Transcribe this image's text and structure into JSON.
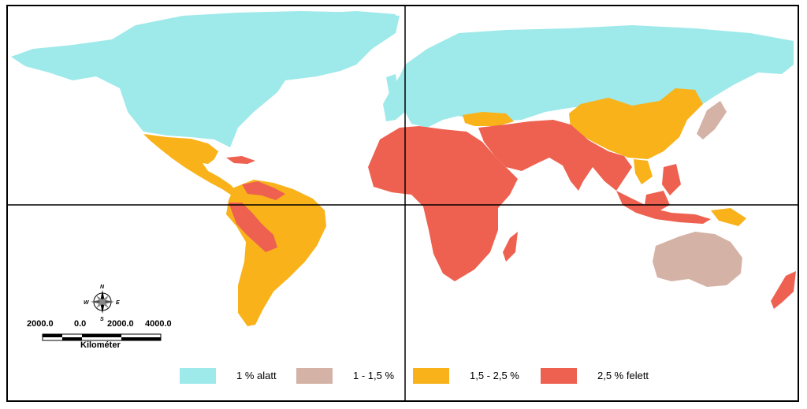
{
  "legend": {
    "items": [
      {
        "label": "1 % alatt",
        "color": "#9ee9ea"
      },
      {
        "label": "1 - 1,5 %",
        "color": "#d4b2a6"
      },
      {
        "label": "1,5 - 2,5 %",
        "color": "#f9b21a"
      },
      {
        "label": "2,5 % felett",
        "color": "#ee6150"
      }
    ]
  },
  "scale_bar": {
    "ticks": [
      "2000.0",
      "0.0",
      "2000.0",
      "4000.0"
    ],
    "unit": "Kilométer"
  },
  "compass": {
    "n": "N",
    "s": "S",
    "e": "E",
    "w": "W"
  },
  "colors": {
    "low": "#9ee9ea",
    "mid_low": "#d4b2a6",
    "mid_high": "#f9b21a",
    "high": "#ee6150",
    "grid": "#000000"
  }
}
